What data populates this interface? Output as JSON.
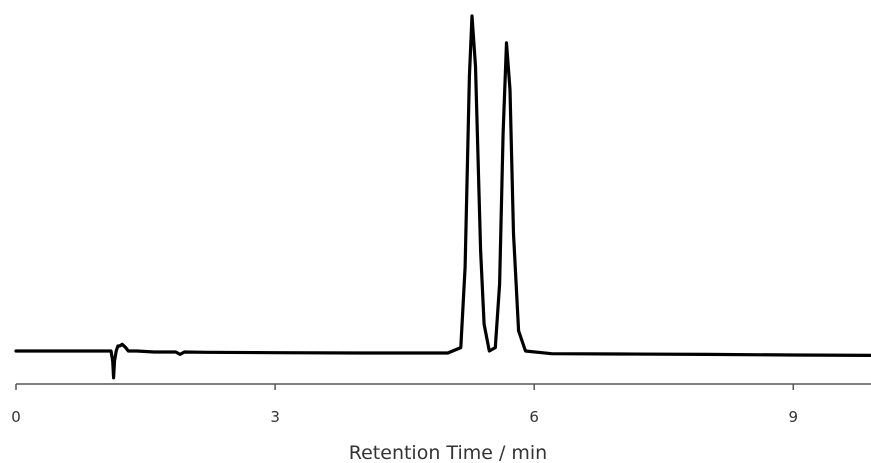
{
  "chart_data": {
    "type": "line",
    "title": "",
    "xlabel": "Retention Time / min",
    "ylabel": "",
    "xlim": [
      0,
      9.9
    ],
    "ylim": [
      -0.1,
      1.0
    ],
    "x_ticks": [
      0,
      3,
      6,
      9
    ],
    "x_tick_labels": [
      "0",
      "3",
      "6",
      "9"
    ],
    "grid": false,
    "legend": "none",
    "line_color": "#000000",
    "axis_color": "#555555",
    "series": [
      {
        "x": [
          0.0,
          0.5,
          1.0,
          1.1,
          1.12,
          1.13,
          1.14,
          1.16,
          1.18,
          1.2,
          1.23,
          1.27,
          1.3,
          1.4,
          1.6,
          1.85,
          1.9,
          1.95,
          2.2,
          3.0,
          4.0,
          5.0,
          5.15,
          5.2,
          5.25,
          5.28,
          5.32,
          5.38,
          5.42,
          5.48,
          5.55,
          5.6,
          5.64,
          5.68,
          5.72,
          5.76,
          5.82,
          5.9,
          6.2,
          7.0,
          8.0,
          9.0,
          9.9
        ],
        "y": [
          0.0,
          0.0,
          0.0,
          0.0,
          -0.03,
          -0.08,
          -0.03,
          0.0,
          0.015,
          0.015,
          0.02,
          0.01,
          0.0,
          0.0,
          -0.003,
          -0.003,
          -0.01,
          -0.003,
          -0.004,
          -0.005,
          -0.006,
          -0.006,
          0.01,
          0.25,
          0.82,
          1.0,
          0.85,
          0.3,
          0.08,
          0.0,
          0.01,
          0.2,
          0.65,
          0.92,
          0.78,
          0.35,
          0.06,
          0.0,
          -0.008,
          -0.009,
          -0.01,
          -0.012,
          -0.013
        ]
      }
    ]
  }
}
